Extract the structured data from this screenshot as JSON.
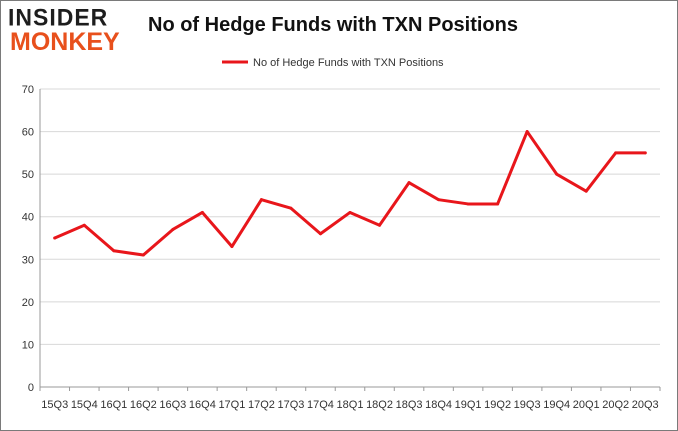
{
  "logo": {
    "line1": "INSIDER",
    "line2": "MONKEY"
  },
  "colors": {
    "series": "#e8161b",
    "grid": "#d8d8d8",
    "axis": "#999999",
    "logo_dark": "#1d1d1d",
    "logo_orange": "#e8501c"
  },
  "chart_data": {
    "type": "line",
    "title": "No of Hedge Funds with TXN Positions",
    "categories": [
      "15Q3",
      "15Q4",
      "16Q1",
      "16Q2",
      "16Q3",
      "16Q4",
      "17Q1",
      "17Q2",
      "17Q3",
      "17Q4",
      "18Q1",
      "18Q2",
      "18Q3",
      "18Q4",
      "19Q1",
      "19Q2",
      "19Q3",
      "19Q4",
      "20Q1",
      "20Q2",
      "20Q3"
    ],
    "series": [
      {
        "name": "No of Hedge Funds with TXN Positions",
        "values": [
          35,
          38,
          32,
          31,
          37,
          41,
          33,
          44,
          42,
          36,
          41,
          38,
          48,
          44,
          43,
          43,
          60,
          50,
          46,
          55,
          55
        ]
      }
    ],
    "ylim": [
      0,
      70
    ],
    "yticks": [
      0,
      10,
      20,
      30,
      40,
      50,
      60,
      70
    ],
    "xlabel": "",
    "ylabel": "",
    "legend_position": "top-center",
    "grid": true
  }
}
